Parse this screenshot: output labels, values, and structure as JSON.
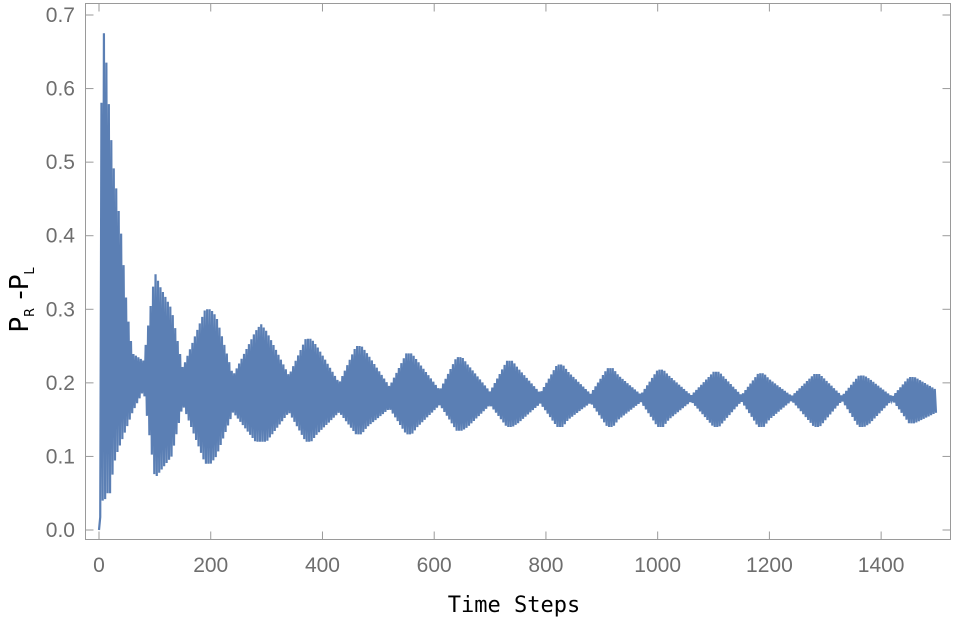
{
  "chart_data": {
    "type": "line",
    "title": "",
    "xlabel": "Time Steps",
    "ylabel": {
      "main": "P",
      "sub1": "R",
      "minus": " -P",
      "sub2": "L"
    },
    "xlim": [
      0,
      1500
    ],
    "ylim": [
      0.0,
      0.7
    ],
    "x_ticks": [
      0,
      200,
      400,
      600,
      800,
      1000,
      1200,
      1400
    ],
    "y_ticks": [
      "0.0",
      "0.1",
      "0.2",
      "0.3",
      "0.4",
      "0.5",
      "0.6",
      "0.7"
    ],
    "grid": false,
    "legend": "none",
    "series": [
      {
        "color": "#5b7fb4",
        "description_points": {
          "x": [
            0,
            5,
            10,
            15,
            20,
            25,
            30,
            40,
            50,
            60,
            80,
            100,
            110,
            130,
            150,
            190,
            200,
            210,
            240,
            280,
            290,
            300,
            340,
            370,
            380,
            390,
            430,
            460,
            470,
            480,
            520,
            550,
            560,
            570,
            610,
            640,
            650,
            660,
            700,
            730,
            740,
            750,
            790,
            820,
            830,
            840,
            880,
            910,
            920,
            930,
            970,
            1000,
            1010,
            1020,
            1060,
            1100,
            1110,
            1150,
            1180,
            1190,
            1200,
            1240,
            1280,
            1290,
            1330,
            1360,
            1370,
            1380,
            1420,
            1450,
            1460,
            1500
          ],
          "y_max": [
            0.0,
            0.66,
            0.68,
            0.61,
            0.55,
            0.5,
            0.47,
            0.4,
            0.3,
            0.24,
            0.23,
            0.35,
            0.33,
            0.3,
            0.22,
            0.3,
            0.3,
            0.29,
            0.21,
            0.27,
            0.28,
            0.27,
            0.21,
            0.26,
            0.26,
            0.25,
            0.2,
            0.25,
            0.25,
            0.24,
            0.195,
            0.24,
            0.24,
            0.23,
            0.19,
            0.235,
            0.235,
            0.225,
            0.188,
            0.23,
            0.23,
            0.22,
            0.186,
            0.225,
            0.225,
            0.215,
            0.185,
            0.22,
            0.22,
            0.21,
            0.184,
            0.218,
            0.218,
            0.21,
            0.183,
            0.215,
            0.215,
            0.183,
            0.213,
            0.213,
            0.205,
            0.182,
            0.212,
            0.212,
            0.182,
            0.21,
            0.21,
            0.205,
            0.181,
            0.208,
            0.208,
            0.19
          ],
          "y_min": [
            0.0,
            0.04,
            0.04,
            0.05,
            0.05,
            0.08,
            0.1,
            0.12,
            0.14,
            0.16,
            0.19,
            0.07,
            0.08,
            0.1,
            0.17,
            0.09,
            0.09,
            0.1,
            0.16,
            0.12,
            0.12,
            0.12,
            0.16,
            0.12,
            0.12,
            0.13,
            0.16,
            0.13,
            0.13,
            0.14,
            0.165,
            0.13,
            0.13,
            0.14,
            0.17,
            0.135,
            0.135,
            0.14,
            0.17,
            0.14,
            0.14,
            0.145,
            0.172,
            0.14,
            0.14,
            0.15,
            0.173,
            0.14,
            0.14,
            0.15,
            0.174,
            0.14,
            0.14,
            0.15,
            0.175,
            0.14,
            0.14,
            0.175,
            0.14,
            0.14,
            0.15,
            0.176,
            0.14,
            0.14,
            0.176,
            0.14,
            0.14,
            0.145,
            0.177,
            0.145,
            0.145,
            0.16
          ]
        }
      }
    ]
  }
}
